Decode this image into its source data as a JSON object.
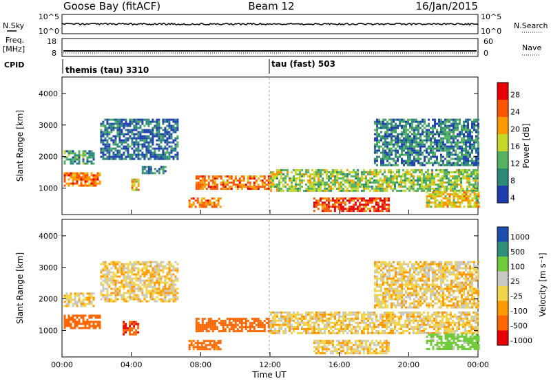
{
  "header": {
    "station": "Goose Bay (fitACF)",
    "beam": "Beam 12",
    "date": "16/Jan/2015"
  },
  "noise_panel": {
    "left_label": "N.Sky",
    "left_ticks": [
      "10^5",
      "10^0"
    ],
    "right_label": "N.Search",
    "right_ticks": [
      "10^5",
      "10^0"
    ]
  },
  "freq_panel": {
    "left_label_1": "Freq.",
    "left_label_2": "[MHz]",
    "left_ticks": [
      "18",
      "8"
    ],
    "right_label": "Nave",
    "right_ticks": [
      "60",
      "0"
    ]
  },
  "cpid_panel": {
    "label": "CPID",
    "segment_1": "themis (tau) 3310",
    "segment_2": "tau (fast) 503"
  },
  "axes": {
    "ylabel": "Slant Range [km]",
    "yticks": [
      "4000",
      "3000",
      "2000",
      "1000"
    ],
    "xlabel": "Time UT",
    "xticks": [
      "00:00",
      "04:00",
      "08:00",
      "12:00",
      "16:00",
      "20:00",
      "00:00"
    ]
  },
  "colorbars": {
    "power_label": "Power [dB]",
    "power_ticks": [
      "28",
      "24",
      "20",
      "16",
      "12",
      "8",
      "4"
    ],
    "velocity_label": "Velocity [m s⁻¹]",
    "velocity_ticks": [
      "1000",
      "500",
      "100",
      "25",
      "-25",
      "-100",
      "-500",
      "-1000"
    ]
  },
  "chart_data": {
    "type": "heatmap",
    "title": "Goose Bay (fitACF)  Beam 12  16/Jan/2015",
    "xlabel": "Time UT",
    "ylabel": "Slant Range [km]",
    "xlim": [
      "00:00",
      "24:00"
    ],
    "ylim": [
      180,
      4500
    ],
    "panels": [
      {
        "name": "Power",
        "units": "dB",
        "color_scale": [
          {
            "value": 28,
            "color": "#e60000"
          },
          {
            "value": 24,
            "color": "#ff5500"
          },
          {
            "value": 20,
            "color": "#ff9900"
          },
          {
            "value": 16,
            "color": "#c8d82a"
          },
          {
            "value": 12,
            "color": "#55b35f"
          },
          {
            "value": 8,
            "color": "#2e8a78"
          },
          {
            "value": 4,
            "color": "#1f3fb0"
          }
        ],
        "bands": [
          {
            "t": [
              0.1,
              2.2
            ],
            "r": [
              1100,
              1500
            ],
            "value": 24
          },
          {
            "t": [
              0.1,
              1.8
            ],
            "r": [
              1800,
              2200
            ],
            "value": 12
          },
          {
            "t": [
              2.2,
              6.7
            ],
            "r": [
              1900,
              3200
            ],
            "value": 8
          },
          {
            "t": [
              4.0,
              4.4
            ],
            "r": [
              900,
              1300
            ],
            "value": 20
          },
          {
            "t": [
              4.6,
              6.0
            ],
            "r": [
              1450,
              1700
            ],
            "value": 10
          },
          {
            "t": [
              7.3,
              9.1
            ],
            "r": [
              400,
              700
            ],
            "value": 24
          },
          {
            "t": [
              7.7,
              12.0
            ],
            "r": [
              1000,
              1400
            ],
            "value": 24
          },
          {
            "t": [
              12.0,
              24.0
            ],
            "r": [
              900,
              1600
            ],
            "value": 16
          },
          {
            "t": [
              14.5,
              18.8
            ],
            "r": [
              300,
              700
            ],
            "value": 28
          },
          {
            "t": [
              18.0,
              24.0
            ],
            "r": [
              1700,
              3200
            ],
            "value": 10
          },
          {
            "t": [
              21.0,
              24.0
            ],
            "r": [
              400,
              900
            ],
            "value": 20
          }
        ]
      },
      {
        "name": "Velocity",
        "units": "m s^-1",
        "color_scale": [
          {
            "value": 1000,
            "color": "#1c4eb0"
          },
          {
            "value": 500,
            "color": "#2f8f7a"
          },
          {
            "value": 100,
            "color": "#6fcb3a"
          },
          {
            "value": 25,
            "color": "#c8c8c0"
          },
          {
            "value": -25,
            "color": "#f2d44a"
          },
          {
            "value": -100,
            "color": "#ff9900"
          },
          {
            "value": -500,
            "color": "#ff6600"
          },
          {
            "value": -1000,
            "color": "#e60000"
          }
        ],
        "bands": [
          {
            "t": [
              0.1,
              2.2
            ],
            "r": [
              1100,
              1500
            ],
            "value": -200
          },
          {
            "t": [
              0.1,
              1.8
            ],
            "r": [
              1800,
              2200
            ],
            "value": 0
          },
          {
            "t": [
              2.2,
              6.7
            ],
            "r": [
              1900,
              3200
            ],
            "value": 0
          },
          {
            "t": [
              3.5,
              4.4
            ],
            "r": [
              900,
              1300
            ],
            "value": -500
          },
          {
            "t": [
              7.3,
              9.1
            ],
            "r": [
              400,
              700
            ],
            "value": -150
          },
          {
            "t": [
              7.7,
              12.0
            ],
            "r": [
              1000,
              1400
            ],
            "value": -200
          },
          {
            "t": [
              12.0,
              24.0
            ],
            "r": [
              900,
              1600
            ],
            "value": 0
          },
          {
            "t": [
              14.5,
              18.8
            ],
            "r": [
              300,
              700
            ],
            "value": 0
          },
          {
            "t": [
              18.0,
              24.0
            ],
            "r": [
              1700,
              3200
            ],
            "value": 0
          },
          {
            "t": [
              21.0,
              24.0
            ],
            "r": [
              400,
              900
            ],
            "value": 150
          }
        ]
      }
    ]
  }
}
